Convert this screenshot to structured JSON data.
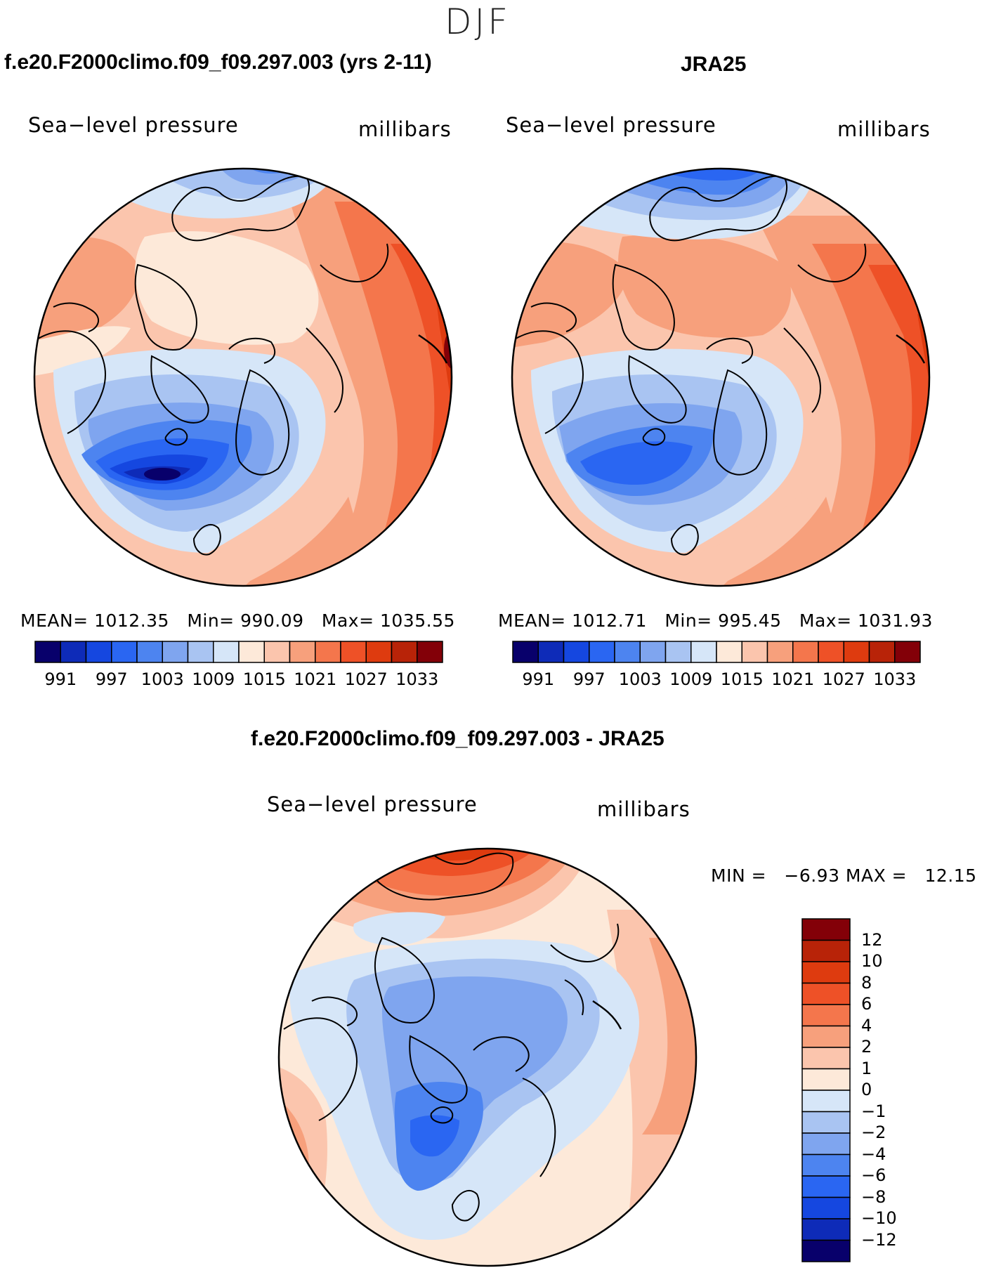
{
  "season": "DJF",
  "panels": [
    {
      "id": "model",
      "title": "f.e20.F2000climo.f09_f09.297.003 (yrs 2-11)",
      "variable": "Sea−level pressure",
      "units": "millibars",
      "stats": {
        "mean_label": "MEAN=",
        "mean": "1012.35",
        "min_label": "Min=",
        "min": "990.09",
        "max_label": "Max=",
        "max": "1035.55"
      }
    },
    {
      "id": "obs",
      "title": "JRA25",
      "variable": "Sea−level pressure",
      "units": "millibars",
      "stats": {
        "mean_label": "MEAN=",
        "mean": "1012.71",
        "min_label": "Min=",
        "min": "995.45",
        "max_label": "Max=",
        "max": "1031.93"
      }
    }
  ],
  "horizontal_colorbar": {
    "colors": [
      "#08006b",
      "#0e2bb8",
      "#1547e0",
      "#2a66f2",
      "#4d84f0",
      "#7fa5ef",
      "#a9c4f2",
      "#d6e6f8",
      "#fde9d9",
      "#fbc5ad",
      "#f7a07c",
      "#f4764c",
      "#ee5127",
      "#de3b0f",
      "#b82308",
      "#830008"
    ],
    "tick_labels": [
      "991",
      "997",
      "1003",
      "1009",
      "1015",
      "1021",
      "1027",
      "1033"
    ]
  },
  "difference_panel": {
    "title": "f.e20.F2000climo.f09_f09.297.003 - JRA25",
    "variable": "Sea−level pressure",
    "units": "millibars",
    "stats_text": "MIN =   −6.93 MAX =   12.15",
    "colorbar": {
      "colors": [
        "#830008",
        "#b82308",
        "#de3b0f",
        "#ee5127",
        "#f4764c",
        "#f7a07c",
        "#fbc5ad",
        "#fde9d9",
        "#d6e6f8",
        "#a9c4f2",
        "#7fa5ef",
        "#4d84f0",
        "#2a66f2",
        "#1547e0",
        "#0e2bb8",
        "#08006b"
      ],
      "tick_labels": [
        "12",
        "10",
        "8",
        "6",
        "4",
        "2",
        "1",
        "0",
        "−1",
        "−2",
        "−4",
        "−6",
        "−8",
        "−10",
        "−12"
      ]
    }
  },
  "map_style": {
    "coast_color": "#000000",
    "outline_color": "#000000"
  }
}
